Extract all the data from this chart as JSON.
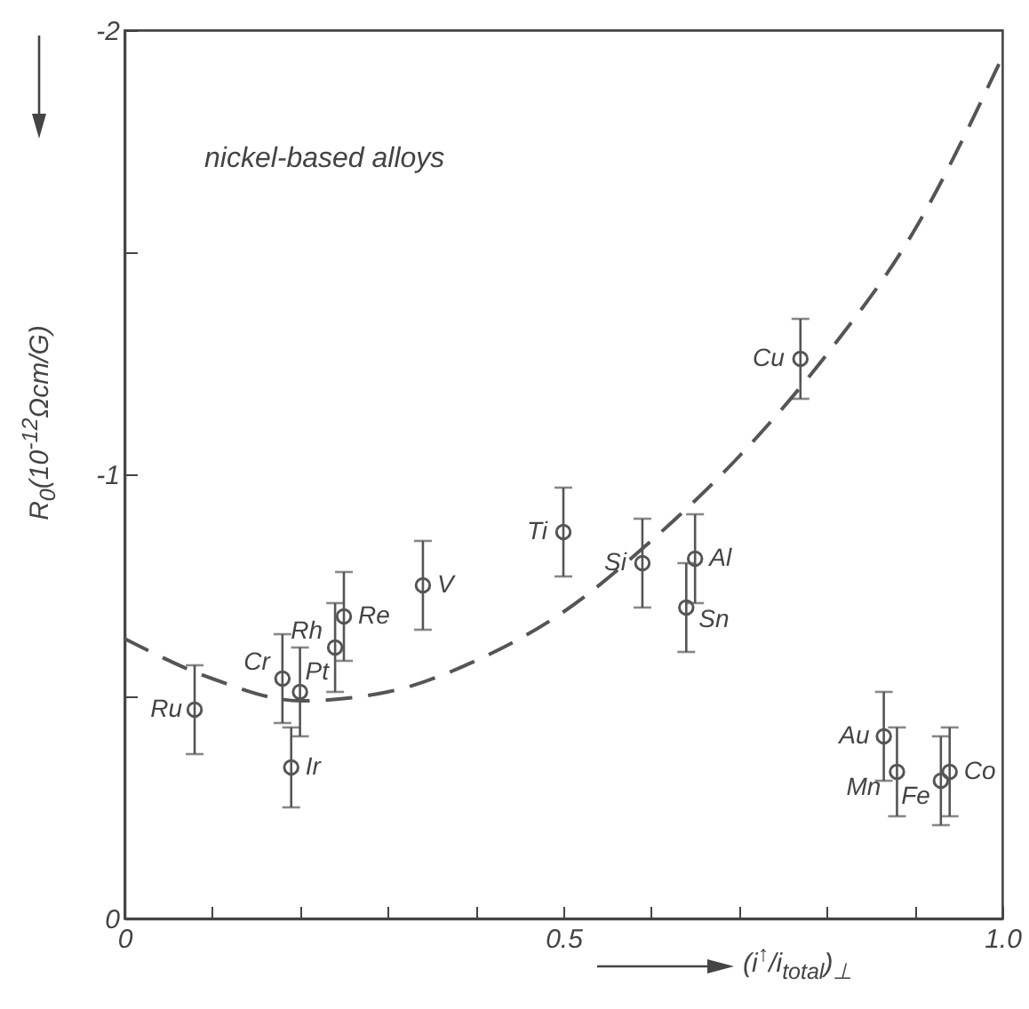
{
  "chart_data": {
    "type": "scatter",
    "xlabel": "(i$^{↑}$/i$_{total}$)$_{⊥}$",
    "ylabel": "R$_{0}$(10$^{-12}$Ωcm/G)",
    "xlim": [
      0,
      1
    ],
    "xticks": [
      0,
      {
        "value": 0.1,
        "label": null
      },
      {
        "value": 0.2,
        "label": null
      },
      {
        "value": 0.3,
        "label": null
      },
      {
        "value": 0.4,
        "label": null
      },
      0.5,
      {
        "value": 0.6,
        "label": null
      },
      {
        "value": 0.7,
        "label": null
      },
      {
        "value": 0.8,
        "label": null
      },
      {
        "value": 0.9,
        "label": null
      },
      {
        "value": 1,
        "label": "1.0"
      }
    ],
    "ylim": [
      0,
      -2
    ],
    "yticks": [
      0,
      {
        "value": -0.5,
        "label": null
      },
      -1,
      {
        "value": -1.5,
        "label": null
      },
      -2
    ],
    "grid": false,
    "series": [
      {
        "marker": "circle",
        "color": "#555555",
        "x": [
          0.08,
          0.18,
          0.2,
          0.19,
          0.24,
          0.25,
          0.34,
          0.5,
          0.59,
          0.65,
          0.64,
          0.77,
          0.865,
          0.88,
          0.93,
          0.94
        ],
        "values": [
          -0.47,
          -0.54,
          -0.51,
          -0.34,
          -0.61,
          -0.68,
          -0.75,
          -0.87,
          -0.8,
          -0.81,
          -0.7,
          -1.26,
          -0.41,
          -0.33,
          -0.31,
          -0.33
        ],
        "errors": [
          0.1,
          0.1,
          0.1,
          0.09,
          0.1,
          0.1,
          0.1,
          0.1,
          0.1,
          0.1,
          0.1,
          0.09,
          0.1,
          0.1,
          0.1,
          0.1
        ]
      },
      {
        "type": "line",
        "marker": "none",
        "line_style": "dashed",
        "color": "#555555",
        "x": [
          0,
          0.1,
          0.2,
          0.3,
          0.4,
          0.5,
          0.6,
          0.7,
          0.8,
          0.9,
          1
        ],
        "values": [
          -0.63,
          -0.54,
          -0.49,
          -0.51,
          -0.58,
          -0.69,
          -0.85,
          -1.04,
          -1.27,
          -1.55,
          -1.94
        ]
      }
    ],
    "annotations": [
      "nickel-based alloys",
      {
        "text": "Ru",
        "x": 0.08,
        "y": -0.47
      },
      {
        "text": "Cr",
        "x": 0.18,
        "y": -0.54
      },
      {
        "text": "Pt",
        "x": 0.2,
        "y": -0.51
      },
      {
        "text": "Ir",
        "x": 0.19,
        "y": -0.34
      },
      {
        "text": "Rh",
        "x": 0.24,
        "y": -0.61
      },
      {
        "text": "Re",
        "x": 0.25,
        "y": -0.68
      },
      {
        "text": "V",
        "x": 0.34,
        "y": -0.75
      },
      {
        "text": "Ti",
        "x": 0.5,
        "y": -0.87
      },
      {
        "text": "Si",
        "x": 0.59,
        "y": -0.8
      },
      {
        "text": "Al",
        "x": 0.65,
        "y": -0.81
      },
      {
        "text": "Sn",
        "x": 0.64,
        "y": -0.7
      },
      {
        "text": "Cu",
        "x": 0.77,
        "y": -1.26
      },
      {
        "text": "Au",
        "x": 0.865,
        "y": -0.41
      },
      {
        "text": "Mn",
        "x": 0.88,
        "y": -0.33
      },
      {
        "text": "Fe",
        "x": 0.93,
        "y": -0.31
      },
      {
        "text": "Co",
        "x": 0.94,
        "y": -0.33
      }
    ]
  }
}
